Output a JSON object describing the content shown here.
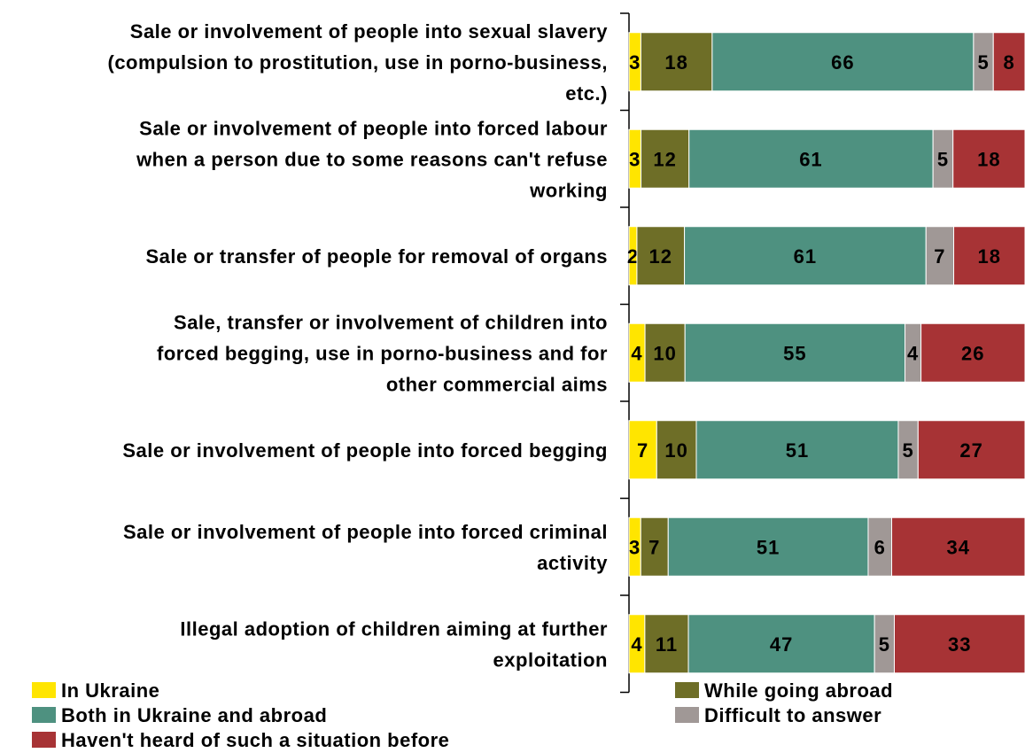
{
  "chart_data": {
    "type": "bar",
    "orientation": "horizontal",
    "stacked": true,
    "categories": [
      [
        "Sale or involvement of people into sexual slavery",
        "(compulsion to prostitution, use in porno-business,",
        "etc.)"
      ],
      [
        "Sale or involvement of people into forced labour",
        "when a person due to some reasons can't refuse",
        "working"
      ],
      [
        "Sale or transfer of people for removal of organs"
      ],
      [
        "Sale, transfer or involvement of children into",
        "forced begging, use in porno-business and for",
        "other commercial aims"
      ],
      [
        "Sale or involvement of people into forced begging"
      ],
      [
        "Sale or involvement of people into forced criminal",
        "activity"
      ],
      [
        "Illegal adoption of children aiming at further",
        "exploitation"
      ]
    ],
    "series": [
      {
        "name": "In Ukraine",
        "color": "#FFE500",
        "values": [
          3,
          3,
          2,
          4,
          7,
          3,
          4
        ]
      },
      {
        "name": "While going abroad",
        "color": "#6E6E27",
        "values": [
          18,
          12,
          12,
          10,
          10,
          7,
          11
        ]
      },
      {
        "name": "Both in Ukraine and abroad",
        "color": "#4E9180",
        "values": [
          66,
          61,
          61,
          55,
          51,
          51,
          47
        ]
      },
      {
        "name": "Difficult to answer",
        "color": "#A09896",
        "values": [
          5,
          5,
          7,
          4,
          5,
          6,
          5
        ]
      },
      {
        "name": "Haven't heard of such a situation before",
        "color": "#A73335",
        "values": [
          8,
          18,
          18,
          26,
          27,
          34,
          33
        ]
      }
    ],
    "legend_position": "bottom",
    "grid": false
  }
}
